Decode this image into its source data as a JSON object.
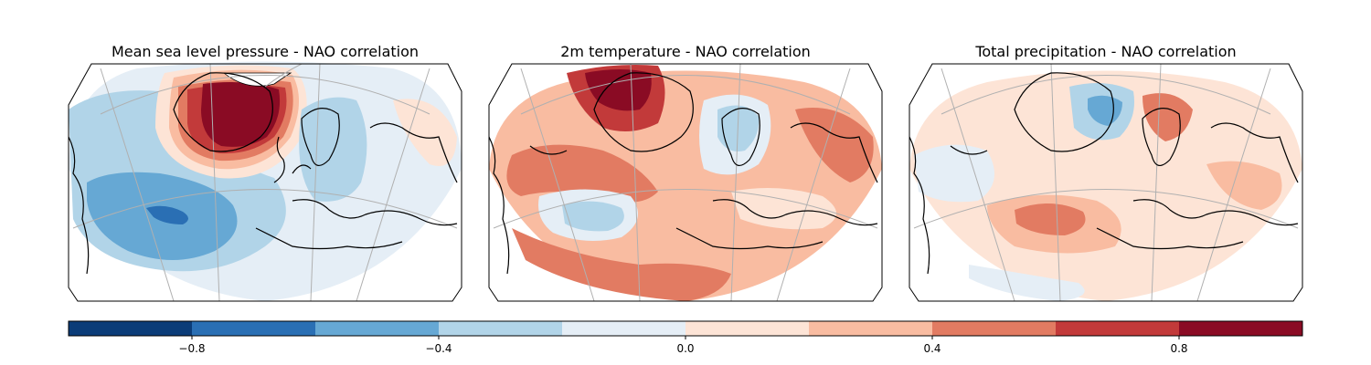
{
  "panels": [
    {
      "id": "mslp",
      "title": "Mean sea level pressure - NAO correlation"
    },
    {
      "id": "t2m",
      "title": "2m temperature - NAO correlation"
    },
    {
      "id": "tp",
      "title": "Total precipitation - NAO correlation"
    }
  ],
  "colorbar": {
    "bounds": [
      -1.0,
      -0.8,
      -0.6,
      -0.4,
      -0.2,
      0.0,
      0.2,
      0.4,
      0.6,
      0.8,
      1.0
    ],
    "colors": [
      "#0b3c78",
      "#2a6fb4",
      "#66a8d4",
      "#b1d4e8",
      "#e5eef6",
      "#fde4d6",
      "#f9bca1",
      "#e27b62",
      "#c23a3a",
      "#8a0b24"
    ],
    "ticks": [
      {
        "value": -0.8,
        "label": "−0.8"
      },
      {
        "value": -0.4,
        "label": "−0.4"
      },
      {
        "value": 0.0,
        "label": "0.0"
      },
      {
        "value": 0.4,
        "label": "0.4"
      },
      {
        "value": 0.8,
        "label": "0.8"
      }
    ]
  },
  "colors": {
    "coastline": "#000000",
    "gridline": "#b0b0b0",
    "frame": "#000000"
  }
}
